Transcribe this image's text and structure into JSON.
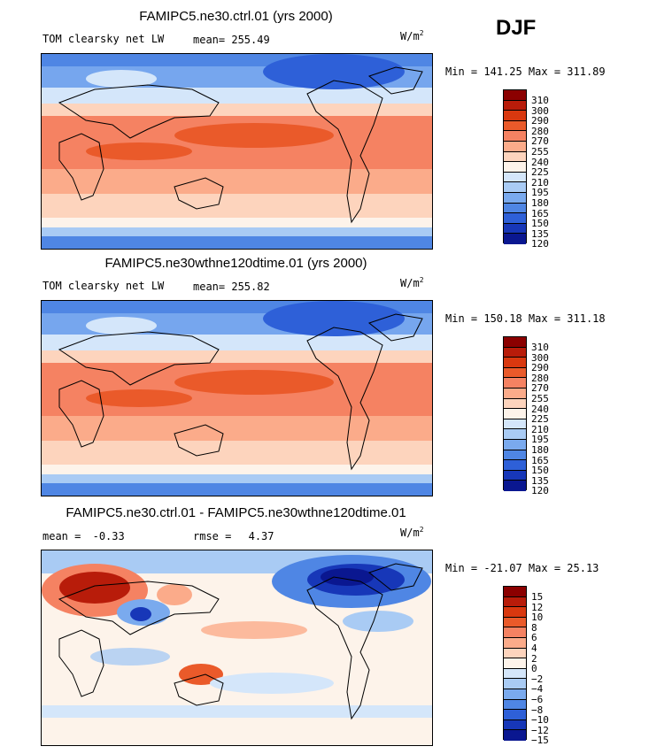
{
  "season": "DJF",
  "units": "W/m",
  "units_sup": "2",
  "panels": {
    "p1": {
      "title": "FAMIPC5.ne30.ctrl.01 (yrs 2000)",
      "variable": "TOM clearsky net LW",
      "mean_label": "mean=",
      "mean_value": "255.49",
      "minmax": "Min = 141.25 Max = 311.89"
    },
    "p2": {
      "title": "FAMIPC5.ne30wthne120dtime.01 (yrs 2000)",
      "variable": "TOM clearsky net LW",
      "mean_label": "mean=",
      "mean_value": "255.82",
      "minmax": "Min = 150.18 Max = 311.18"
    },
    "p3": {
      "title": "FAMIPC5.ne30.ctrl.01 - FAMIPC5.ne30wthne120dtime.01",
      "mean_label": "mean =",
      "mean_value": "-0.33",
      "rmse_label": "rmse =",
      "rmse_value": "4.37",
      "minmax": "Min = -21.07 Max = 25.13"
    }
  },
  "chart_data": [
    {
      "type": "heatmap",
      "title": "FAMIPC5.ne30.ctrl.01 (yrs 2000)",
      "variable": "TOM clearsky net LW",
      "units": "W/m2",
      "mean": 255.49,
      "min": 141.25,
      "max": 311.89,
      "colorbar_levels": [
        310,
        300,
        290,
        280,
        270,
        255,
        240,
        225,
        210,
        195,
        180,
        165,
        150,
        135,
        120
      ]
    },
    {
      "type": "heatmap",
      "title": "FAMIPC5.ne30wthne120dtime.01 (yrs 2000)",
      "variable": "TOM clearsky net LW",
      "units": "W/m2",
      "mean": 255.82,
      "min": 150.18,
      "max": 311.18,
      "colorbar_levels": [
        310,
        300,
        290,
        280,
        270,
        255,
        240,
        225,
        210,
        195,
        180,
        165,
        150,
        135,
        120
      ]
    },
    {
      "type": "heatmap",
      "title": "FAMIPC5.ne30.ctrl.01 - FAMIPC5.ne30wthne120dtime.01",
      "units": "W/m2",
      "mean": -0.33,
      "rmse": 4.37,
      "min": -21.07,
      "max": 25.13,
      "colorbar_levels": [
        15,
        12,
        10,
        8,
        6,
        4,
        2,
        0,
        -2,
        -4,
        -6,
        -8,
        -10,
        -12,
        -15
      ]
    }
  ],
  "colorbar": {
    "abs_labels": [
      "310",
      "300",
      "290",
      "280",
      "270",
      "255",
      "240",
      "225",
      "210",
      "195",
      "180",
      "165",
      "150",
      "135",
      "120"
    ],
    "diff_labels": [
      "15",
      "12",
      "10",
      "8",
      "6",
      "4",
      "2",
      "0",
      "−2",
      "−4",
      "−6",
      "−8",
      "−10",
      "−12",
      "−15"
    ],
    "colors": [
      "#8b0000",
      "#b81c0a",
      "#d9380f",
      "#ea5a2a",
      "#f58262",
      "#fbab8a",
      "#fdd4bd",
      "#fdf3ea",
      "#d4e6fa",
      "#a9cbf4",
      "#7aaaee",
      "#4f86e4",
      "#2e60d8",
      "#1737b8",
      "#0a1790"
    ]
  }
}
